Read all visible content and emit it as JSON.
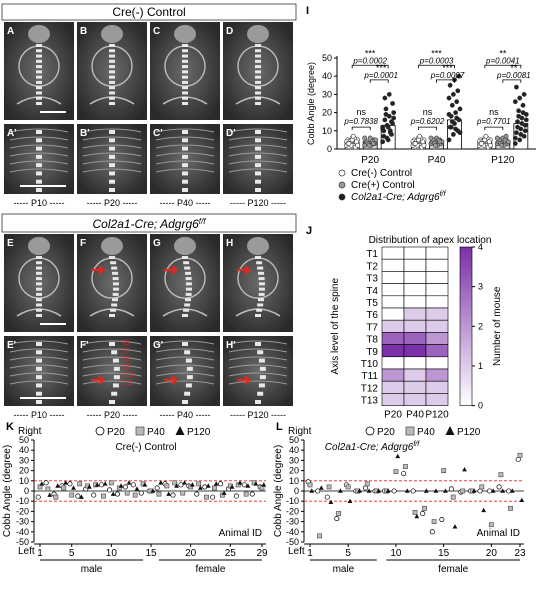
{
  "figure": {
    "control_header": "Cre(-) Control",
    "mutant_header": "Col2a1-Cre; Adgrg6f/f",
    "mutant_header_main": "Col2a1-Cre; Adgrg6",
    "mutant_header_sup": "f/f",
    "top_panel_letters": [
      "A",
      "B",
      "C",
      "D"
    ],
    "top_zoom_letters": [
      "A'",
      "B'",
      "C'",
      "D'"
    ],
    "bottom_panel_letters": [
      "E",
      "F",
      "G",
      "H"
    ],
    "bottom_zoom_letters": [
      "E'",
      "F'",
      "G'",
      "H'"
    ],
    "age_labels": [
      "----- P10 -----",
      "----- P20 -----",
      "----- P40 -----",
      "----- P120 -----"
    ],
    "overlay_labels": [
      "T6",
      "T7",
      "T8",
      "T9",
      "T10",
      "T11"
    ]
  },
  "colors": {
    "red": "#e8251f",
    "purple": "#7b2fa8",
    "grey_fill": "#9a9a9a",
    "dark": "#222222"
  },
  "chart_data": [
    {
      "panel": "I",
      "type": "bar",
      "ylabel": "Cobb Angle (degree)",
      "ylim": [
        0,
        50
      ],
      "yticks": [
        0,
        10,
        20,
        30,
        40,
        50
      ],
      "categories": [
        "P20",
        "P40",
        "P120"
      ],
      "series": [
        {
          "name": "Cre(-) Control",
          "style": "open",
          "values": [
            3.5,
            4,
            3.5
          ]
        },
        {
          "name": "Cre(+) Control",
          "style": "grey",
          "values": [
            4,
            4,
            4
          ]
        },
        {
          "name": "Col2a1-Cre; Adgrg6f/f",
          "name_main": "Col2a1-Cre; Adgrg6",
          "name_sup": "f/f",
          "style": "dark",
          "values": [
            13,
            16,
            14
          ]
        }
      ],
      "points": {
        "P20": [
          [
            2,
            3,
            4,
            5,
            6,
            3,
            4,
            2,
            5,
            3,
            6,
            4,
            2,
            1,
            3,
            5,
            4,
            3,
            7,
            2
          ],
          [
            2,
            3,
            5,
            4,
            6,
            3,
            4,
            2,
            5,
            3,
            4,
            6,
            2,
            3
          ],
          [
            4,
            6,
            8,
            10,
            12,
            14,
            16,
            18,
            20,
            22,
            9,
            11,
            13,
            15,
            7,
            5,
            25,
            28,
            30,
            17,
            19,
            10,
            12
          ]
        ],
        "P40": [
          [
            2,
            3,
            4,
            5,
            6,
            3,
            4,
            2,
            5,
            3,
            6,
            4,
            2,
            1,
            3,
            5,
            4,
            3,
            7,
            2
          ],
          [
            3,
            4,
            5,
            4,
            6,
            3,
            5,
            2,
            4,
            3,
            5,
            6,
            2,
            4
          ],
          [
            5,
            8,
            10,
            12,
            14,
            16,
            18,
            20,
            22,
            24,
            26,
            28,
            30,
            32,
            35,
            38,
            40,
            12,
            11,
            9,
            15,
            17,
            19
          ]
        ],
        "P120": [
          [
            2,
            3,
            4,
            5,
            6,
            3,
            4,
            2,
            5,
            3,
            6,
            4,
            2,
            1,
            3,
            5,
            4,
            3,
            7,
            2
          ],
          [
            3,
            4,
            5,
            4,
            6,
            3,
            5,
            2,
            4,
            3,
            5,
            6,
            2,
            7
          ],
          [
            3,
            5,
            7,
            9,
            11,
            13,
            15,
            17,
            19,
            21,
            24,
            26,
            28,
            30,
            34,
            8,
            10,
            12,
            14,
            16,
            18,
            20,
            6
          ]
        ]
      },
      "comparisons": [
        {
          "cat": "P20",
          "top_sig": "***",
          "top_p": "p=0.0002",
          "mid_sig": "***",
          "mid_p": "p=0.0001",
          "low_sig": "ns",
          "low_p": "p=0.7838"
        },
        {
          "cat": "P40",
          "top_sig": "***",
          "top_p": "p=0.0003",
          "mid_sig": "***",
          "mid_p": "p=0.0007",
          "low_sig": "ns",
          "low_p": "p=0.6202"
        },
        {
          "cat": "P120",
          "top_sig": "**",
          "top_p": "p=0.0041",
          "mid_sig": "**",
          "mid_p": "p=0.0081",
          "low_sig": "ns",
          "low_p": "p=0.7701"
        }
      ]
    },
    {
      "panel": "J",
      "type": "heatmap",
      "title": "Distribution of apex location",
      "ylabel": "Axis level of the spine",
      "colorbar_label": "Number of mouse",
      "colorbar_ticks": [
        0,
        1,
        2,
        3,
        4
      ],
      "columns": [
        "P20",
        "P40",
        "P120"
      ],
      "rows": [
        "T1",
        "T2",
        "T3",
        "T4",
        "T5",
        "T6",
        "T7",
        "T8",
        "T9",
        "T10",
        "T11",
        "T12",
        "T13"
      ],
      "values": [
        [
          0,
          0,
          0
        ],
        [
          0,
          0,
          0
        ],
        [
          0,
          0,
          0
        ],
        [
          0,
          0,
          0
        ],
        [
          0,
          0,
          0
        ],
        [
          0,
          1,
          1
        ],
        [
          1,
          1,
          1
        ],
        [
          3,
          3,
          2
        ],
        [
          4,
          4,
          3
        ],
        [
          0,
          0,
          0
        ],
        [
          2,
          1,
          2
        ],
        [
          1,
          1,
          1
        ],
        [
          1,
          1,
          1
        ]
      ]
    },
    {
      "panel": "K",
      "type": "scatter",
      "title": "Cre(-) Control",
      "ylabel": "Cobb Angle (degree)",
      "xlabel": "Animal ID",
      "top_label": "Right",
      "bottom_label": "Left",
      "ylim": [
        -50,
        50
      ],
      "yticks": [
        50,
        40,
        30,
        20,
        10,
        0,
        -10,
        -20,
        -30,
        -40,
        -50
      ],
      "reference_lines": [
        10,
        -10
      ],
      "xlim": [
        1,
        29
      ],
      "xticks": [
        1,
        5,
        10,
        15,
        20,
        25,
        29
      ],
      "groups": [
        {
          "label": "male",
          "from": 1,
          "to": 14
        },
        {
          "label": "female",
          "from": 16,
          "to": 29
        }
      ],
      "legend": [
        "P20",
        "P40",
        "P120"
      ],
      "series": [
        {
          "name": "P20",
          "marker": "circle",
          "values": [
            -6,
            8,
            -3,
            5,
            7,
            -5,
            2,
            -4,
            6,
            1,
            -3,
            4,
            6,
            -2,
            0,
            3,
            7,
            -4,
            6,
            5,
            -3,
            4,
            -6,
            7,
            2,
            -5,
            6,
            -3,
            4
          ]
        },
        {
          "name": "P40",
          "marker": "square",
          "values": [
            4,
            2,
            -6,
            3,
            -4,
            7,
            5,
            6,
            -5,
            8,
            3,
            -2,
            -4,
            7,
            0,
            -3,
            5,
            8,
            -2,
            4,
            7,
            -6,
            3,
            -4,
            5,
            6,
            -3,
            8,
            3
          ]
        },
        {
          "name": "P120",
          "marker": "triangle",
          "values": [
            7,
            -4,
            5,
            8,
            3,
            -6,
            4,
            6,
            7,
            -3,
            5,
            8,
            2,
            6,
            0,
            8,
            -3,
            5,
            8,
            6,
            3,
            5,
            7,
            -2,
            4,
            8,
            5,
            7,
            6
          ]
        }
      ]
    },
    {
      "panel": "L",
      "type": "scatter",
      "title": "Col2a1-Cre; Adgrg6f/f",
      "title_main": "Col2a1-Cre; Adgrg6",
      "title_sup": "f/f",
      "ylabel": "Cobb Angle (degree)",
      "xlabel": "Animal ID",
      "top_label": "Right",
      "bottom_label": "Left",
      "ylim": [
        -50,
        50
      ],
      "yticks": [
        50,
        40,
        30,
        20,
        10,
        0,
        -10,
        -20,
        -30,
        -40,
        -50
      ],
      "reference_lines": [
        10,
        -10
      ],
      "xlim": [
        1,
        23
      ],
      "xticks": [
        1,
        5,
        10,
        15,
        20,
        23
      ],
      "groups": [
        {
          "label": "male",
          "from": 1,
          "to": 8
        },
        {
          "label": "female",
          "from": 9,
          "to": 23
        }
      ],
      "legend": [
        "P20",
        "P40",
        "P120"
      ],
      "series": [
        {
          "name": "P20",
          "marker": "circle",
          "values": [
            9,
            0,
            -6,
            -27,
            6,
            0,
            3,
            0,
            0,
            0,
            17,
            0,
            -22,
            -40,
            -28,
            2,
            -1,
            0,
            0,
            0,
            4,
            0,
            31
          ]
        },
        {
          "name": "P40",
          "marker": "square",
          "values": [
            6,
            -44,
            4,
            -22,
            4,
            0,
            7,
            0,
            0,
            19,
            24,
            -21,
            -17,
            -30,
            20,
            -6,
            0,
            0,
            4,
            -33,
            16,
            -17,
            35
          ]
        },
        {
          "name": "P120",
          "marker": "triangle",
          "values": [
            0,
            3,
            -11,
            0,
            -10,
            0,
            0,
            0,
            0,
            34,
            0,
            -25,
            0,
            0,
            0,
            -35,
            21,
            0,
            -19,
            0,
            0,
            0,
            -9
          ]
        }
      ]
    }
  ]
}
